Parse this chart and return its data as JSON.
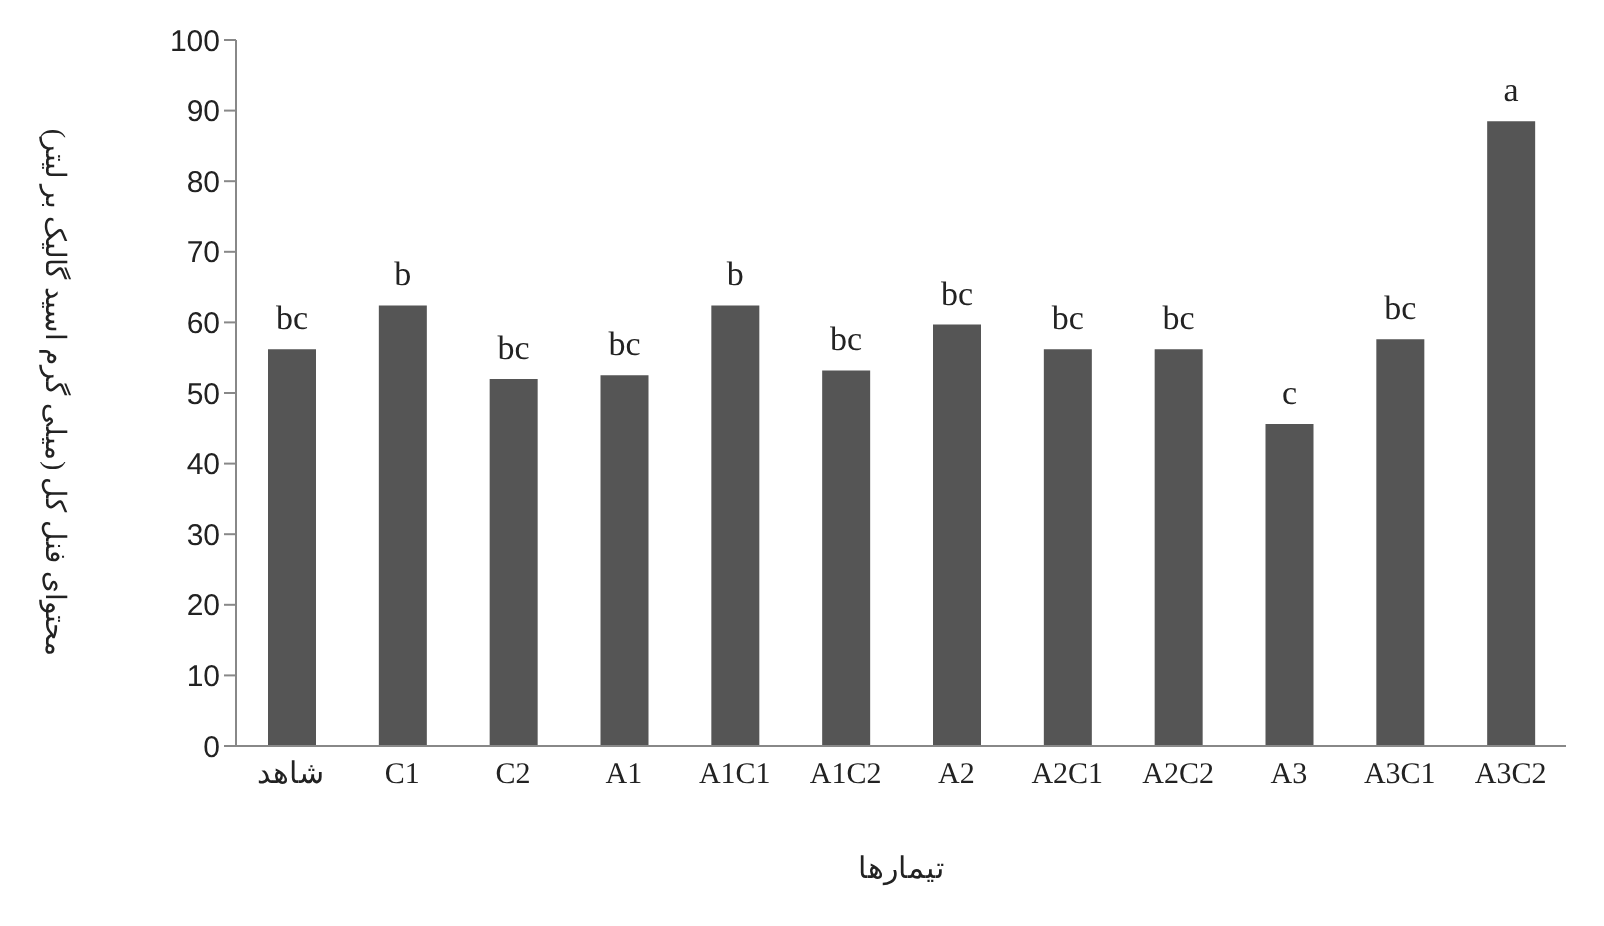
{
  "chart_data": {
    "type": "bar",
    "xlabel": "تیمارها",
    "ylabel": "محتوای فنل کل (میلی گرم اسید گالیک بر لیتر)",
    "categories": [
      "شاهد",
      "C1",
      "C2",
      "A1",
      "A1C1",
      "A1C2",
      "A2",
      "A2C1",
      "A2C2",
      "A3",
      "A3C1",
      "A3C2"
    ],
    "values": [
      56.2,
      62.4,
      52,
      52.5,
      62.4,
      53.2,
      59.7,
      56.2,
      56.2,
      45.6,
      57.6,
      88.5
    ],
    "value_labels": [
      "bc",
      "b",
      "bc",
      "bc",
      "b",
      "bc",
      "bc",
      "bc",
      "bc",
      "c",
      "bc",
      "a"
    ],
    "color": "#555555",
    "ylim": [
      0,
      100
    ],
    "yticks": [
      0,
      10,
      20,
      30,
      40,
      50,
      60,
      70,
      80,
      90,
      100
    ],
    "grid": false,
    "legend": false
  }
}
